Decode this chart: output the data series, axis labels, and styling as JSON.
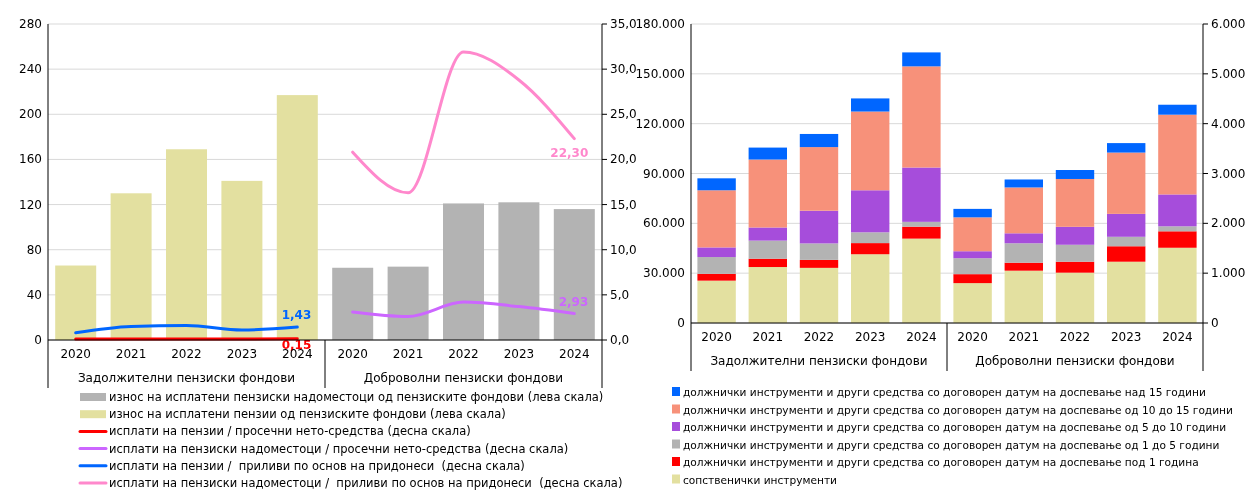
{
  "chart_data": [
    {
      "type": "bar",
      "categories": [
        "2020",
        "2021",
        "2022",
        "2023",
        "2024",
        "2020",
        "2021",
        "2022",
        "2023",
        "2024"
      ],
      "annotations": [
        "Задолжителни пензиски фондови",
        "Доброволни пензиски фондови"
      ],
      "series": [
        {
          "name": "износ на исплатени пензиски надоместоци од пензиските фондови (лева скала)",
          "color": "#b3b3b3",
          "values": [
            null,
            null,
            null,
            null,
            null,
            64,
            65,
            121,
            122,
            116
          ]
        },
        {
          "name": "износ на исплатени пензии од пензиските фондови (лева скала)",
          "color": "#e3e0a0",
          "values": [
            66,
            130,
            169,
            141,
            217,
            null,
            null,
            null,
            null,
            null
          ]
        },
        {
          "name": "исплати на пензии / просечни нето-средства (десна скала)",
          "type": "line",
          "axis": "y2",
          "color": "#ff0000",
          "values": [
            0.1,
            0.1,
            0.1,
            0.1,
            0.15,
            null,
            null,
            null,
            null,
            null
          ],
          "value_labels": [
            null,
            null,
            null,
            null,
            "0,15",
            null,
            null,
            null,
            null,
            null
          ]
        },
        {
          "name": "исплати на пензиски надоместоци / просечни нето-средства (десна скала)",
          "type": "line",
          "axis": "y2",
          "color": "#cc66ff",
          "values": [
            null,
            null,
            null,
            null,
            null,
            3.1,
            2.6,
            4.2,
            3.7,
            2.93
          ],
          "value_labels": [
            null,
            null,
            null,
            null,
            null,
            null,
            null,
            null,
            null,
            "2,93"
          ]
        },
        {
          "name": "исплати на пензии /  приливи по основ на придонеси  (десна скала)",
          "type": "line",
          "axis": "y2",
          "color": "#0066ff",
          "values": [
            0.8,
            1.5,
            1.6,
            1.1,
            1.43,
            null,
            null,
            null,
            null,
            null
          ],
          "value_labels": [
            null,
            null,
            null,
            null,
            "1,43",
            null,
            null,
            null,
            null,
            null
          ]
        },
        {
          "name": "исплати на пензиски надоместоци /  приливи по основ на придонеси  (десна скала)",
          "type": "line",
          "axis": "y2",
          "color": "#ff88cc",
          "values": [
            null,
            null,
            null,
            null,
            null,
            20.8,
            16.3,
            31.9,
            28.8,
            22.3
          ],
          "value_labels": [
            null,
            null,
            null,
            null,
            null,
            null,
            null,
            null,
            null,
            "22,30"
          ]
        }
      ],
      "ylim": [
        0,
        280
      ],
      "yticks": [
        0,
        40,
        80,
        120,
        160,
        200,
        240,
        280
      ],
      "y2lim": [
        0,
        35
      ],
      "y2ticks": [
        {
          "value": 0,
          "label": "0,0"
        },
        {
          "value": 5,
          "label": "5,0"
        },
        {
          "value": 10,
          "label": "10,0"
        },
        {
          "value": 15,
          "label": "15,0"
        },
        {
          "value": 20,
          "label": "20,0"
        },
        {
          "value": 25,
          "label": "25,0"
        },
        {
          "value": 30,
          "label": "30,0"
        },
        {
          "value": 35,
          "label": "35,0"
        }
      ],
      "grid": "y",
      "legend": "bottom"
    },
    {
      "type": "bar",
      "stacked": true,
      "categories": [
        "2020",
        "2021",
        "2022",
        "2023",
        "2024",
        "2020",
        "2021",
        "2022",
        "2023",
        "2024"
      ],
      "annotations": [
        "Задолжителни пензиски фондови",
        "Доброволни пензиски фондови"
      ],
      "series": [
        {
          "name": "сопственички инструменти",
          "color": "#e3e0a0",
          "values": [
            25500,
            33700,
            33200,
            41400,
            50800,
            null,
            null,
            null,
            null,
            null
          ]
        },
        {
          "name": "должнички инструменти и други средства со договорен датум на доспевање под 1 година",
          "color": "#ff0000",
          "values": [
            4100,
            5000,
            4800,
            6700,
            7200,
            null,
            null,
            null,
            null,
            null
          ]
        },
        {
          "name": "должнички инструменти и други средства со договорен датум на доспевање од 1 до 5 години",
          "color": "#b3b3b3",
          "values": [
            10100,
            10900,
            9900,
            6500,
            2900,
            null,
            null,
            null,
            null,
            null
          ]
        },
        {
          "name": "должнички инструменти и други средства со договорен датум на доспевање од 5 до 10 години",
          "color": "#a64ddb",
          "values": [
            5800,
            7900,
            19700,
            25300,
            32700,
            null,
            null,
            null,
            null,
            null
          ]
        },
        {
          "name": "должнички инструменти и други средства со договорен датум на доспевање од 10 до 15 години",
          "color": "#f7917a",
          "values": [
            34400,
            40900,
            38300,
            47400,
            60900,
            null,
            null,
            null,
            null,
            null
          ]
        },
        {
          "name": "должнички инструменти и други средства со договорен датум на доспевање над 15 години",
          "color": "#0066ff",
          "values": [
            7200,
            7200,
            7900,
            7900,
            8400,
            null,
            null,
            null,
            null,
            null
          ]
        },
        {
          "axis": "y2",
          "color": "#e3e0a0",
          "values": [
            null,
            null,
            null,
            null,
            null,
            800,
            1050,
            1010,
            1230,
            1510
          ]
        },
        {
          "axis": "y2",
          "color": "#ff0000",
          "values": [
            null,
            null,
            null,
            null,
            null,
            180,
            160,
            220,
            310,
            330
          ]
        },
        {
          "axis": "y2",
          "color": "#b3b3b3",
          "values": [
            null,
            null,
            null,
            null,
            null,
            320,
            390,
            340,
            190,
            100
          ]
        },
        {
          "axis": "y2",
          "color": "#a64ddb",
          "values": [
            null,
            null,
            null,
            null,
            null,
            140,
            200,
            360,
            460,
            640
          ]
        },
        {
          "axis": "y2",
          "color": "#f7917a",
          "values": [
            null,
            null,
            null,
            null,
            null,
            680,
            920,
            960,
            1230,
            1600
          ]
        },
        {
          "axis": "y2",
          "color": "#0066ff",
          "values": [
            null,
            null,
            null,
            null,
            null,
            170,
            160,
            180,
            190,
            200
          ]
        }
      ],
      "ylim": [
        0,
        180000
      ],
      "yticks": [
        0,
        {
          "value": 30000,
          "label": "30.000"
        },
        {
          "value": 60000,
          "label": "60.000"
        },
        {
          "value": 90000,
          "label": "90.000"
        },
        {
          "value": 120000,
          "label": "120.000"
        },
        {
          "value": 150000,
          "label": "150.000"
        },
        {
          "value": 180000,
          "label": "180.000"
        }
      ],
      "y2lim": [
        0,
        6000
      ],
      "y2ticks": [
        0,
        {
          "value": 1000,
          "label": "1.000"
        },
        {
          "value": 2000,
          "label": "2.000"
        },
        {
          "value": 3000,
          "label": "3.000"
        },
        {
          "value": 4000,
          "label": "4.000"
        },
        {
          "value": 5000,
          "label": "5.000"
        },
        {
          "value": 6000,
          "label": "6.000"
        }
      ],
      "grid": "y",
      "legend": "bottom"
    }
  ]
}
